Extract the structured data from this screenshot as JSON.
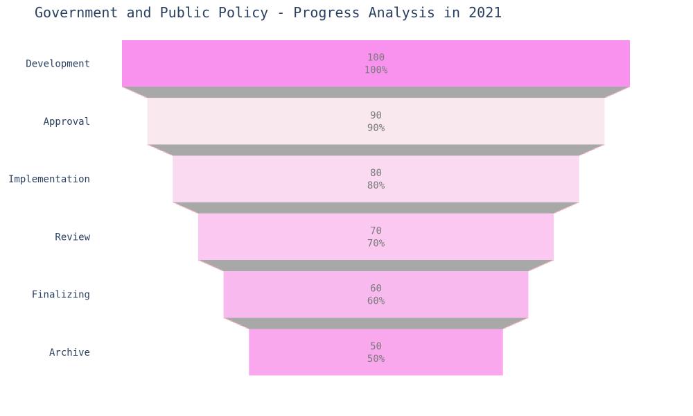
{
  "chart_data": {
    "type": "funnel",
    "title": "Government and Public Policy - Progress Analysis in 2021",
    "categories": [
      "Development",
      "Approval",
      "Implementation",
      "Review",
      "Finalizing",
      "Archive"
    ],
    "values": [
      100,
      90,
      80,
      70,
      60,
      50
    ],
    "percent_labels": [
      "100%",
      "90%",
      "80%",
      "70%",
      "60%",
      "50%"
    ],
    "colors": [
      "#f992ef",
      "#f9e9ee",
      "#f9daf0",
      "#fac8f0",
      "#f8b9ee",
      "#f9a8ed"
    ],
    "connector_color": "#a8a8a8",
    "connector_line_color": "#ffb6c1"
  }
}
